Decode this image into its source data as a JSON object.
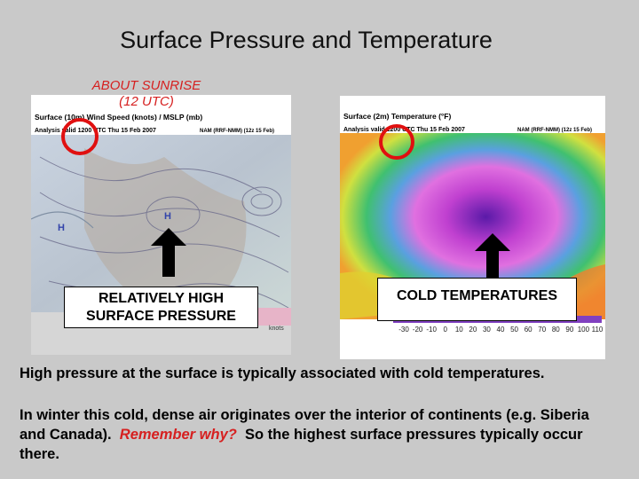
{
  "title": "Surface Pressure and Temperature",
  "annotation": {
    "line1": "ABOUT SUNRISE",
    "line2": "(12 UTC)"
  },
  "map_left": {
    "header1": "Surface (10m) Wind Speed (knots) / MSLP (mb)",
    "header2": "Analysis valid 1200 UTC Thu 15 Feb 2007",
    "model": "NAM (RRF-NMM) (12z 15 Feb)",
    "high_labels": [
      "H",
      "H"
    ],
    "units": "knots",
    "callout": "RELATIVELY HIGH SURFACE PRESSURE"
  },
  "map_right": {
    "header1": "Surface (2m) Temperature (°F)",
    "header2": "Analysis valid 1200 UTC Thu 15 Feb 2007",
    "model": "NAM (RRF-NMM) (12z 15 Feb)",
    "colorbar_ticks": [
      "-30",
      "-20",
      "-10",
      "0",
      "10",
      "20",
      "30",
      "40",
      "50",
      "60",
      "70",
      "80",
      "90",
      "100",
      "110"
    ],
    "callout": "COLD TEMPERATURES"
  },
  "paragraph1": "High pressure at the surface is typically associated with cold temperatures.",
  "paragraph2": {
    "before": "In winter this cold, dense air originates over the interior of continents (e.g. Siberia and Canada).",
    "emphasis": "Remember why?",
    "after": "So the highest surface pressures typically occur there."
  }
}
